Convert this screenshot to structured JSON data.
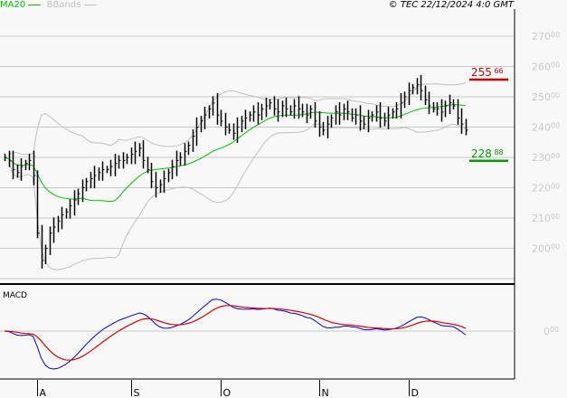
{
  "legend": {
    "ma_label": "MA20",
    "ma_color": "#00c000",
    "bb_label": "BBands",
    "bb_color": "#c0c0c0"
  },
  "copyright": "© TEC 22/12/2024 4:0 GMT",
  "chart_data": [
    {
      "type": "bar",
      "subtype": "ohlc",
      "title": "",
      "ylim": [
        190,
        275
      ],
      "y_ticks": [
        {
          "int": "270",
          "dec": "00"
        },
        {
          "int": "260",
          "dec": "00"
        },
        {
          "int": "250",
          "dec": "00"
        },
        {
          "int": "240",
          "dec": "00"
        },
        {
          "int": "230",
          "dec": "00"
        },
        {
          "int": "220",
          "dec": "00"
        },
        {
          "int": "210",
          "dec": "00"
        },
        {
          "int": "200",
          "dec": "00"
        }
      ],
      "y_tick_values": [
        270,
        260,
        250,
        240,
        230,
        220,
        210,
        200,
        190
      ],
      "grid": true,
      "x_ticks": [
        "A",
        "S",
        "O",
        "N",
        "D"
      ],
      "x_tick_index": [
        8,
        31,
        53,
        77,
        99
      ],
      "closes": [
        230,
        229,
        226,
        225,
        227,
        228,
        229,
        224,
        205,
        196,
        200,
        205,
        207,
        209,
        211,
        212,
        214,
        216,
        218,
        220,
        222,
        223,
        224,
        225,
        226,
        226,
        227,
        228,
        229,
        229,
        230,
        231,
        232,
        233,
        229,
        226,
        222,
        220,
        221,
        223,
        225,
        227,
        229,
        230,
        232,
        234,
        237,
        240,
        242,
        244,
        246,
        248,
        244,
        242,
        240,
        239,
        238,
        240,
        242,
        243,
        244,
        245,
        244,
        246,
        247,
        248,
        246,
        245,
        247,
        246,
        245,
        247,
        246,
        245,
        244,
        246,
        242,
        240,
        239,
        241,
        243,
        245,
        244,
        246,
        245,
        243,
        244,
        242,
        241,
        243,
        244,
        245,
        243,
        242,
        244,
        245,
        246,
        248,
        250,
        252,
        253,
        254,
        252,
        249,
        247,
        246,
        246,
        245,
        247,
        248,
        247,
        243,
        241,
        239
      ],
      "overlays": [
        "MA20",
        "BBands"
      ],
      "levels": [
        {
          "name": "resistance",
          "value": 255.66,
          "int": "255",
          "dec": "66",
          "color": "#cc0000"
        },
        {
          "name": "support",
          "value": 228.88,
          "int": "228",
          "dec": "88",
          "color": "#009900"
        }
      ],
      "colors": {
        "bars": "#000000",
        "ma": "#00c000",
        "bbands": "#c0c0c0"
      }
    },
    {
      "type": "line",
      "title": "MACD",
      "y_ticks": [
        {
          "int": "0",
          "dec": "00"
        }
      ],
      "series": [
        {
          "color": "#0000dd"
        },
        {
          "color": "#dd0000"
        }
      ],
      "zero_line": true
    }
  ]
}
